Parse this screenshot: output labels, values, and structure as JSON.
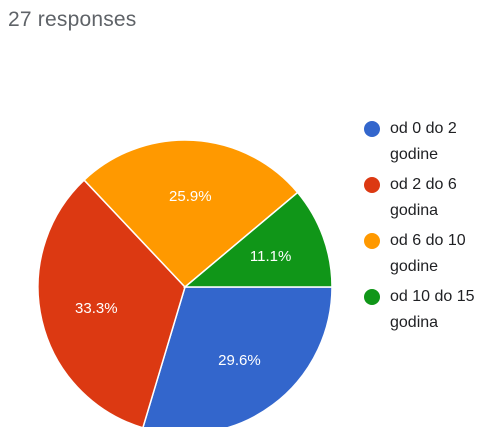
{
  "header": {
    "responses_label": "27 responses"
  },
  "chart_data": {
    "type": "pie",
    "categories": [
      "od 0 do 2 godine",
      "od 2 do 6 godina",
      "od 6 do 10 godine",
      "od 10 do 15 godina"
    ],
    "values": [
      29.6,
      33.3,
      25.9,
      11.1
    ],
    "labels": [
      "29.6%",
      "33.3%",
      "25.9%",
      "11.1%"
    ],
    "colors": [
      "#3366cc",
      "#dc3912",
      "#ff9900",
      "#109618"
    ],
    "legend_position": "right"
  }
}
